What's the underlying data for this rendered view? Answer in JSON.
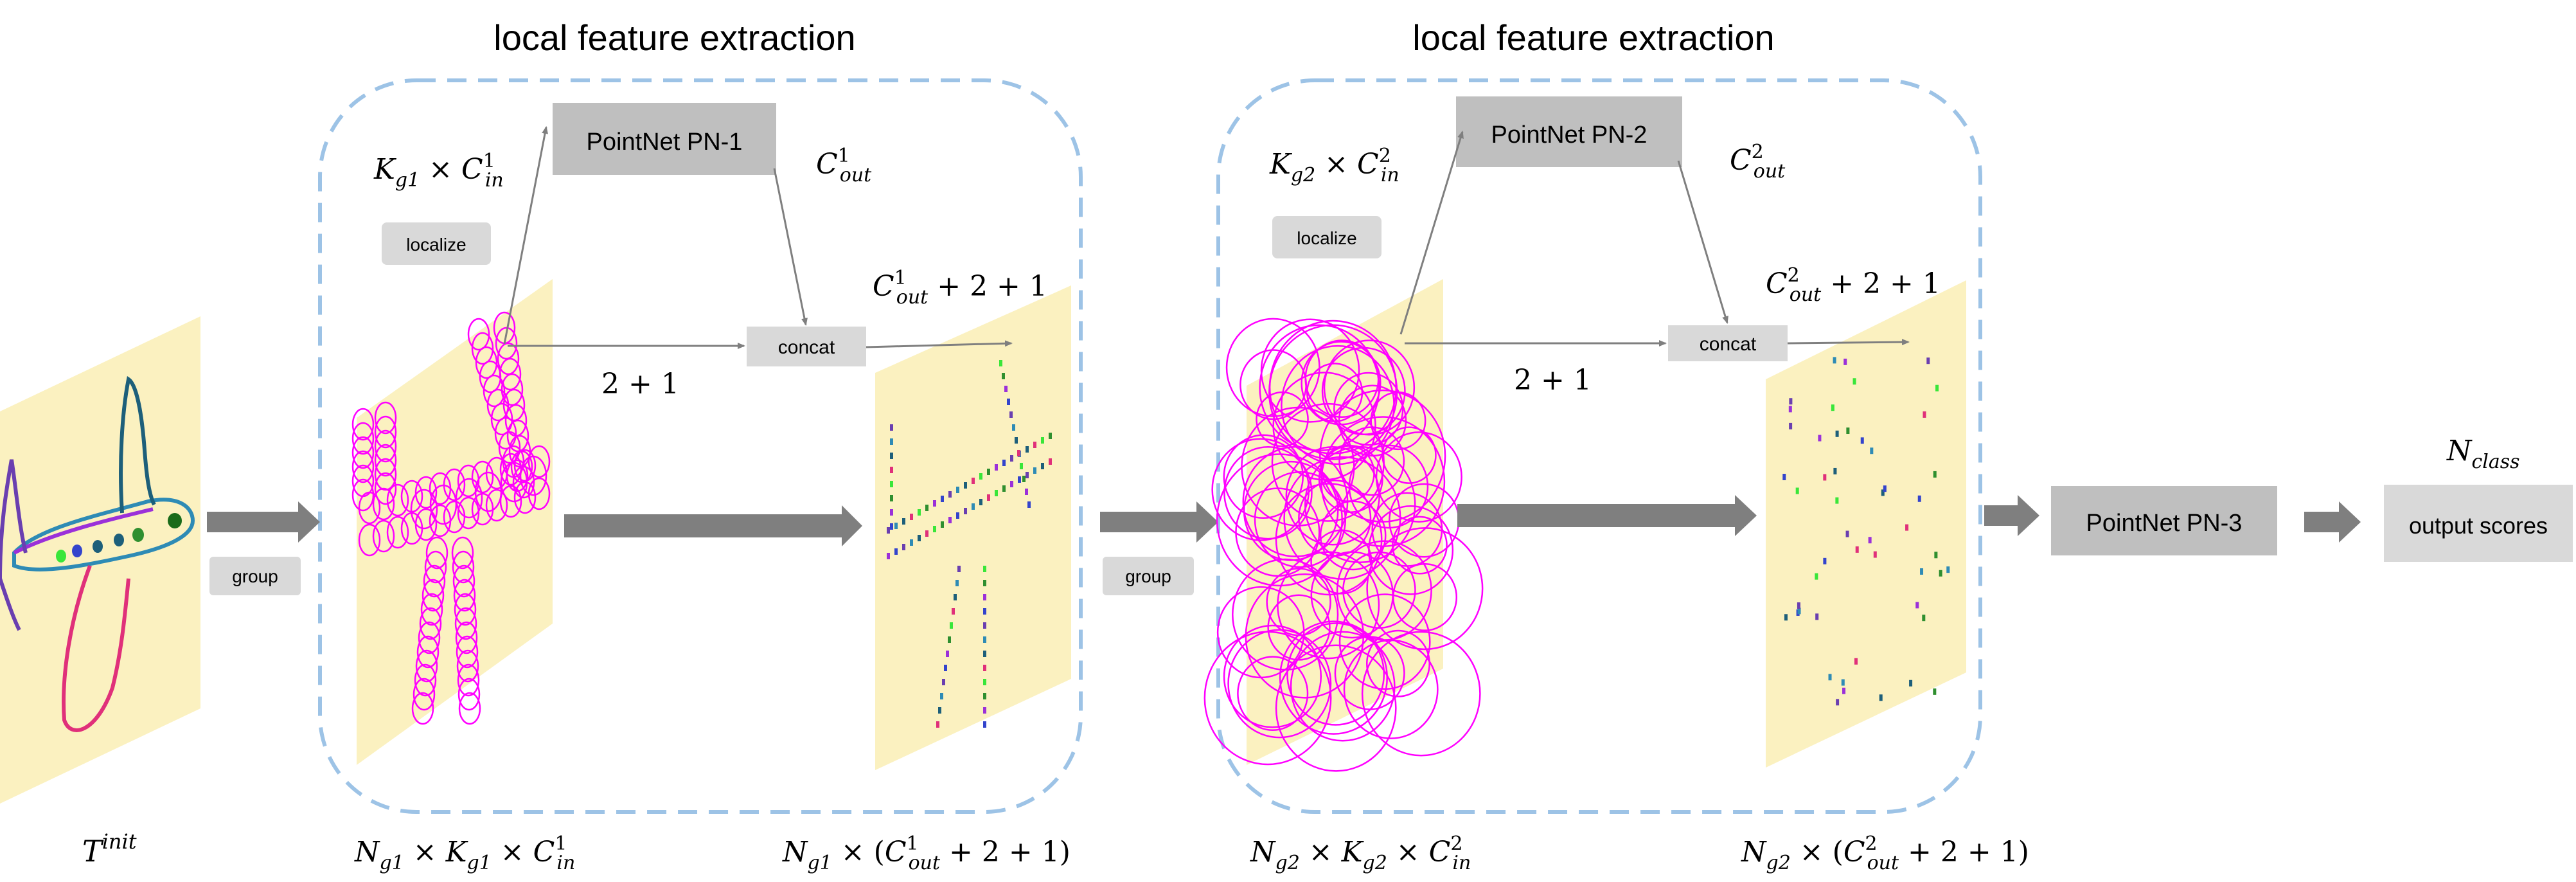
{
  "module1": {
    "title": "local feature extraction",
    "pointnet_label": "PointNet PN-1",
    "localize_label": "localize",
    "concat_label": "concat",
    "k_in": {
      "base": "K",
      "sub": "g1",
      "times": "×",
      "c": "C",
      "c_sub": "in",
      "c_sup": "1"
    },
    "c_out": {
      "base": "C",
      "sub": "out",
      "sup": "1"
    },
    "c_out_plus": {
      "base": "C",
      "sub": "out",
      "sup": "1",
      "rest": "+ 2 + 1"
    },
    "two_plus_one": "2 + 1",
    "bottom_left": {
      "n": "N",
      "n_sub": "g1",
      "k": "K",
      "k_sub": "g1",
      "c": "C",
      "c_sub": "in",
      "c_sup": "1"
    },
    "bottom_right": {
      "n": "N",
      "n_sub": "g1",
      "c": "C",
      "c_sub": "out",
      "c_sup": "1",
      "rest": "+ 2 + 1)"
    }
  },
  "module2": {
    "title": "local feature extraction",
    "pointnet_label": "PointNet PN-2",
    "localize_label": "localize",
    "concat_label": "concat",
    "k_in": {
      "base": "K",
      "sub": "g2",
      "times": "×",
      "c": "C",
      "c_sub": "in",
      "c_sup": "2"
    },
    "c_out": {
      "base": "C",
      "sub": "out",
      "sup": "2"
    },
    "c_out_plus": {
      "base": "C",
      "sub": "out",
      "sup": "2",
      "rest": "+ 2 + 1"
    },
    "two_plus_one": "2 + 1",
    "bottom_left": {
      "n": "N",
      "n_sub": "g2",
      "k": "K",
      "k_sub": "g2",
      "c": "C",
      "c_sub": "in",
      "c_sup": "2"
    },
    "bottom_right": {
      "n": "N",
      "n_sub": "g2",
      "c": "C",
      "c_sub": "out",
      "c_sup": "2",
      "rest": "+ 2 + 1)"
    }
  },
  "input": {
    "base": "T",
    "sup": "init"
  },
  "group_label_1": "group",
  "group_label_2": "group",
  "pn3_label": "PointNet PN-3",
  "output": {
    "n": "N",
    "n_sub": "class",
    "label": "output scores"
  },
  "colors": {
    "panel": "#fbf1c0",
    "dashed_border": "#9dc3e6",
    "pointnet_box": "#bfbfbf",
    "small_box": "#d9d9d9",
    "arrow": "#7f7f7f",
    "circle": "#ff00ff"
  }
}
